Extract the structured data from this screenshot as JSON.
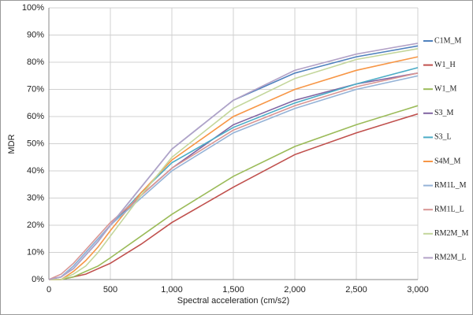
{
  "chart_data": {
    "type": "line",
    "x_label": "Spectral acceleration (cm/s2)",
    "y_label": "MDR",
    "x": [
      0,
      100,
      200,
      300,
      400,
      500,
      750,
      1000,
      1500,
      2000,
      2500,
      3000
    ],
    "series": [
      {
        "name": "C1M_M",
        "color": "#4f81bd",
        "values": [
          0,
          1,
          4,
          9,
          14,
          20,
          34,
          48,
          66,
          76,
          82,
          86
        ]
      },
      {
        "name": "W1_H",
        "color": "#c0504d",
        "values": [
          0,
          0,
          1,
          2,
          4,
          6,
          13,
          21,
          34,
          46,
          54,
          61
        ]
      },
      {
        "name": "W1_M",
        "color": "#9bbb59",
        "values": [
          0,
          0,
          1,
          3,
          5,
          8,
          16,
          24,
          38,
          49,
          57,
          64
        ]
      },
      {
        "name": "S3_M",
        "color": "#8064a2",
        "values": [
          0,
          1,
          5,
          10,
          15,
          20,
          31,
          41,
          57,
          66,
          72,
          76
        ]
      },
      {
        "name": "S3_L",
        "color": "#4bacc6",
        "values": [
          0,
          1,
          5,
          10,
          15,
          20,
          32,
          43,
          56,
          65,
          72,
          78
        ]
      },
      {
        "name": "S4M_M",
        "color": "#f79646",
        "values": [
          0,
          0,
          3,
          7,
          12,
          18,
          32,
          44,
          60,
          70,
          77,
          82
        ]
      },
      {
        "name": "RM1L_M",
        "color": "#95b3d7",
        "values": [
          0,
          1,
          5,
          10,
          15,
          20,
          30,
          40,
          54,
          63,
          70,
          75
        ]
      },
      {
        "name": "RM1L_L",
        "color": "#d99694",
        "values": [
          0,
          2,
          6,
          11,
          16,
          21,
          31,
          41,
          55,
          64,
          71,
          76
        ]
      },
      {
        "name": "RM2M_M",
        "color": "#c3d69b",
        "values": [
          0,
          0,
          2,
          5,
          10,
          16,
          31,
          45,
          63,
          74,
          81,
          85
        ]
      },
      {
        "name": "RM2M_L",
        "color": "#b3a2c7",
        "values": [
          0,
          1,
          4,
          9,
          14,
          20,
          34,
          48,
          66,
          77,
          83,
          87
        ]
      }
    ],
    "xlim": [
      0,
      3000
    ],
    "xticks": [
      0,
      500,
      {
        "value": 1000,
        "label": "1,000"
      },
      {
        "value": 1500,
        "label": "1,500"
      },
      {
        "value": 2000,
        "label": "2,000"
      },
      {
        "value": 2500,
        "label": "2,500"
      },
      {
        "value": 3000,
        "label": "3,000"
      }
    ],
    "ylim": [
      0,
      100
    ],
    "yticks": [
      {
        "value": 0,
        "label": "0%"
      },
      {
        "value": 10,
        "label": "10%"
      },
      {
        "value": 20,
        "label": "20%"
      },
      {
        "value": 30,
        "label": "30%"
      },
      {
        "value": 40,
        "label": "40%"
      },
      {
        "value": 50,
        "label": "50%"
      },
      {
        "value": 60,
        "label": "60%"
      },
      {
        "value": 70,
        "label": "70%"
      },
      {
        "value": 80,
        "label": "80%"
      },
      {
        "value": 90,
        "label": "90%"
      },
      {
        "value": 100,
        "label": "100%"
      }
    ],
    "grid": true,
    "legend": "right"
  }
}
